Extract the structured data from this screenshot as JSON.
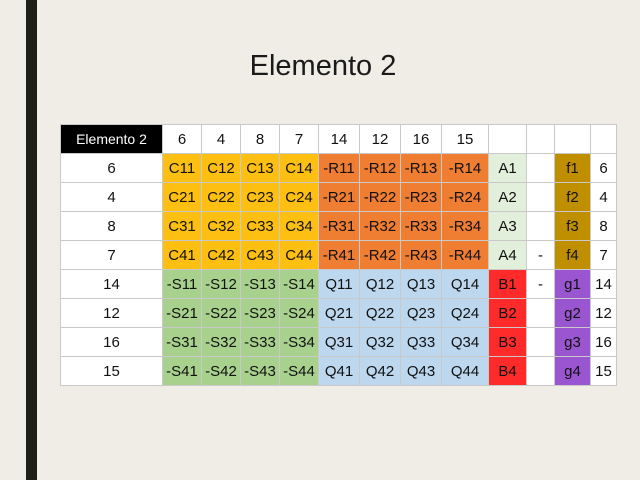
{
  "slide": {
    "title": "Elemento 2"
  },
  "table": {
    "corner": "Elemento 2",
    "column_headers": [
      "6",
      "4",
      "8",
      "7",
      "14",
      "12",
      "16",
      "15",
      "",
      "",
      "",
      ""
    ],
    "rows": [
      {
        "header": "6",
        "cells": [
          "C11",
          "C12",
          "C13",
          "C14",
          "-R11",
          "-R12",
          "-R13",
          "-R14",
          "A1",
          "",
          "f1",
          "6"
        ]
      },
      {
        "header": "4",
        "cells": [
          "C21",
          "C22",
          "C23",
          "C24",
          "-R21",
          "-R22",
          "-R23",
          "-R24",
          "A2",
          "",
          "f2",
          "4"
        ]
      },
      {
        "header": "8",
        "cells": [
          "C31",
          "C32",
          "C33",
          "C34",
          "-R31",
          "-R32",
          "-R33",
          "-R34",
          "A3",
          "",
          "f3",
          "8"
        ]
      },
      {
        "header": "7",
        "cells": [
          "C41",
          "C42",
          "C43",
          "C44",
          "-R41",
          "-R42",
          "-R43",
          "-R44",
          "A4",
          "-",
          "f4",
          "7"
        ]
      },
      {
        "header": "14",
        "cells": [
          "-S11",
          "-S12",
          "-S13",
          "-S14",
          "Q11",
          "Q12",
          "Q13",
          "Q14",
          "B1",
          "-",
          "g1",
          "14"
        ]
      },
      {
        "header": "12",
        "cells": [
          "-S21",
          "-S22",
          "-S23",
          "-S24",
          "Q21",
          "Q22",
          "Q23",
          "Q24",
          "B2",
          "",
          "g2",
          "12"
        ]
      },
      {
        "header": "16",
        "cells": [
          "-S31",
          "-S32",
          "-S33",
          "-S34",
          "Q31",
          "Q32",
          "Q33",
          "Q34",
          "B3",
          "",
          "g3",
          "16"
        ]
      },
      {
        "header": "15",
        "cells": [
          "-S41",
          "-S42",
          "-S43",
          "-S44",
          "Q41",
          "Q42",
          "Q43",
          "Q44",
          "B4",
          "",
          "g4",
          "15"
        ]
      }
    ]
  },
  "colors": {
    "C_block": "#fdbf11",
    "R_block": "#ef7d32",
    "A_column": "#e2efdb",
    "S_block": "#a9d18e",
    "Q_block": "#bdd7ee",
    "B_column": "#ff2b2b",
    "f_column": "#bf8f00",
    "g_column": "#9a55d0"
  }
}
